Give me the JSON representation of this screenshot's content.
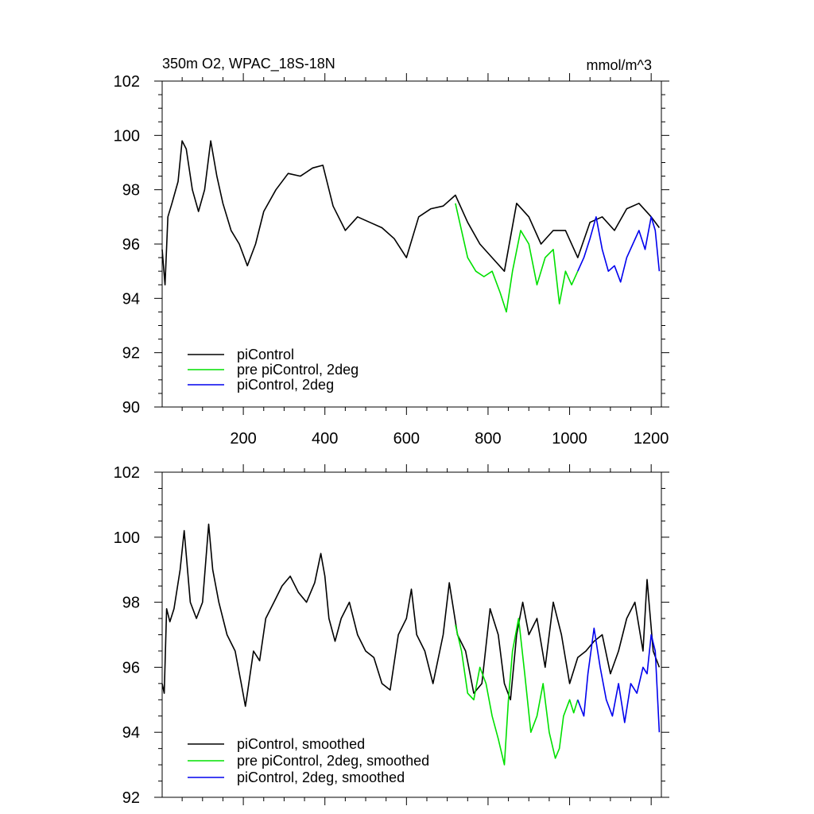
{
  "figure": {
    "left_title": "350m O2, WPAC_18S-18N",
    "right_title": "mmol/m^3"
  },
  "chart_data": [
    {
      "type": "line",
      "title": "350m O2, WPAC_18S-18N",
      "units_label": "mmol/m^3",
      "xlim": [
        1,
        1225
      ],
      "ylim": [
        90,
        102
      ],
      "x_ticks": [
        200,
        400,
        600,
        800,
        1000,
        1200
      ],
      "x_tick_labels": [
        "200",
        "400",
        "600",
        "800",
        "1000",
        "1200"
      ],
      "y_ticks": [
        90,
        92,
        94,
        96,
        98,
        100,
        102
      ],
      "y_tick_labels": [
        "90",
        "92",
        "94",
        "96",
        "98",
        "100",
        "102"
      ],
      "legend_position": "bottom-left",
      "series": [
        {
          "name": "piControl",
          "color": "#000000",
          "x": [
            1,
            8,
            15,
            25,
            40,
            50,
            60,
            75,
            90,
            105,
            120,
            135,
            150,
            170,
            190,
            210,
            230,
            250,
            280,
            310,
            340,
            370,
            395,
            420,
            450,
            480,
            510,
            540,
            570,
            600,
            630,
            660,
            690,
            720,
            750,
            780,
            810,
            840,
            870,
            900,
            930,
            960,
            990,
            1020,
            1050,
            1080,
            1110,
            1140,
            1170,
            1200,
            1220
          ],
          "values": [
            95.8,
            94.5,
            97.0,
            97.5,
            98.3,
            99.8,
            99.5,
            98.0,
            97.2,
            98.0,
            99.8,
            98.5,
            97.5,
            96.5,
            96.0,
            95.2,
            96.0,
            97.2,
            98.0,
            98.6,
            98.5,
            98.8,
            98.9,
            97.4,
            96.5,
            97.0,
            96.8,
            96.6,
            96.2,
            95.5,
            97.0,
            97.3,
            97.4,
            97.8,
            96.8,
            96.0,
            95.5,
            95.0,
            97.5,
            97.0,
            96.0,
            96.5,
            96.5,
            95.5,
            96.8,
            97.0,
            96.5,
            97.3,
            97.5,
            97.0,
            96.6
          ]
        },
        {
          "name": "pre piControl, 2deg",
          "color": "#00e000",
          "x": [
            720,
            735,
            750,
            770,
            790,
            810,
            830,
            845,
            860,
            880,
            900,
            920,
            940,
            960,
            975,
            990,
            1005,
            1020
          ],
          "values": [
            97.5,
            96.5,
            95.5,
            95.0,
            94.8,
            95.0,
            94.2,
            93.5,
            95.0,
            96.5,
            96.0,
            94.5,
            95.5,
            95.8,
            93.8,
            95.0,
            94.5,
            95.0
          ]
        },
        {
          "name": "piControl, 2deg",
          "color": "#0000ee",
          "x": [
            1020,
            1035,
            1050,
            1065,
            1080,
            1095,
            1110,
            1125,
            1140,
            1155,
            1170,
            1185,
            1200,
            1210,
            1220
          ],
          "values": [
            95.0,
            95.5,
            96.2,
            97.0,
            95.8,
            95.0,
            95.2,
            94.6,
            95.5,
            96.0,
            96.5,
            95.8,
            97.0,
            96.5,
            95.0
          ]
        }
      ]
    },
    {
      "type": "line",
      "xlim": [
        1,
        1225
      ],
      "ylim": [
        92,
        102
      ],
      "x_ticks": [
        200,
        400,
        600,
        800,
        1000,
        1200
      ],
      "y_ticks": [
        92,
        94,
        96,
        98,
        100,
        102
      ],
      "y_tick_labels": [
        "92",
        "94",
        "96",
        "98",
        "100",
        "102"
      ],
      "legend_position": "bottom-left",
      "series": [
        {
          "name": "piControl, smoothed",
          "color": "#000000",
          "x": [
            1,
            6,
            12,
            20,
            30,
            45,
            55,
            70,
            85,
            100,
            115,
            125,
            140,
            160,
            180,
            195,
            205,
            210,
            225,
            240,
            255,
            275,
            295,
            315,
            335,
            355,
            375,
            390,
            400,
            410,
            425,
            440,
            460,
            480,
            500,
            520,
            540,
            560,
            580,
            600,
            612,
            625,
            645,
            665,
            690,
            705,
            725,
            745,
            765,
            785,
            805,
            825,
            840,
            855,
            870,
            885,
            900,
            920,
            940,
            960,
            980,
            1000,
            1020,
            1040,
            1060,
            1080,
            1100,
            1120,
            1140,
            1160,
            1180,
            1190,
            1205,
            1220
          ],
          "values": [
            95.5,
            95.2,
            97.8,
            97.4,
            97.8,
            99.0,
            100.2,
            98.0,
            97.5,
            98.0,
            100.4,
            99.0,
            98.0,
            97.0,
            96.5,
            95.5,
            94.8,
            95.2,
            96.5,
            96.2,
            97.5,
            98.0,
            98.5,
            98.8,
            98.3,
            98.0,
            98.6,
            99.5,
            98.8,
            97.5,
            96.8,
            97.5,
            98.0,
            97.0,
            96.5,
            96.3,
            95.5,
            95.3,
            97.0,
            97.5,
            98.4,
            97.0,
            96.5,
            95.5,
            97.0,
            98.6,
            97.0,
            96.5,
            95.2,
            95.5,
            97.8,
            97.0,
            95.5,
            95.0,
            97.0,
            98.0,
            97.0,
            97.5,
            96.0,
            98.0,
            97.0,
            95.5,
            96.3,
            96.5,
            96.8,
            97.0,
            95.8,
            96.5,
            97.5,
            98.0,
            96.5,
            98.7,
            96.5,
            96.0
          ]
        },
        {
          "name": "pre piControl, 2deg, smoothed",
          "color": "#00e000",
          "x": [
            720,
            735,
            750,
            765,
            780,
            795,
            810,
            825,
            840,
            850,
            860,
            875,
            890,
            905,
            920,
            935,
            950,
            965,
            975,
            985,
            1000,
            1010,
            1020
          ],
          "values": [
            97.3,
            96.5,
            95.2,
            95.0,
            96.0,
            95.5,
            94.5,
            93.8,
            93.0,
            95.0,
            96.5,
            97.5,
            95.8,
            94.0,
            94.5,
            95.5,
            94.0,
            93.2,
            93.5,
            94.5,
            95.0,
            94.6,
            95.0
          ]
        },
        {
          "name": "piControl, 2deg, smoothed",
          "color": "#0000ee",
          "x": [
            1020,
            1035,
            1045,
            1060,
            1075,
            1090,
            1105,
            1120,
            1135,
            1150,
            1165,
            1180,
            1190,
            1200,
            1210,
            1220
          ],
          "values": [
            95.0,
            94.5,
            95.8,
            97.2,
            96.0,
            95.0,
            94.5,
            95.5,
            94.3,
            95.5,
            95.2,
            96.0,
            95.8,
            97.0,
            96.5,
            94.0
          ]
        }
      ]
    }
  ]
}
